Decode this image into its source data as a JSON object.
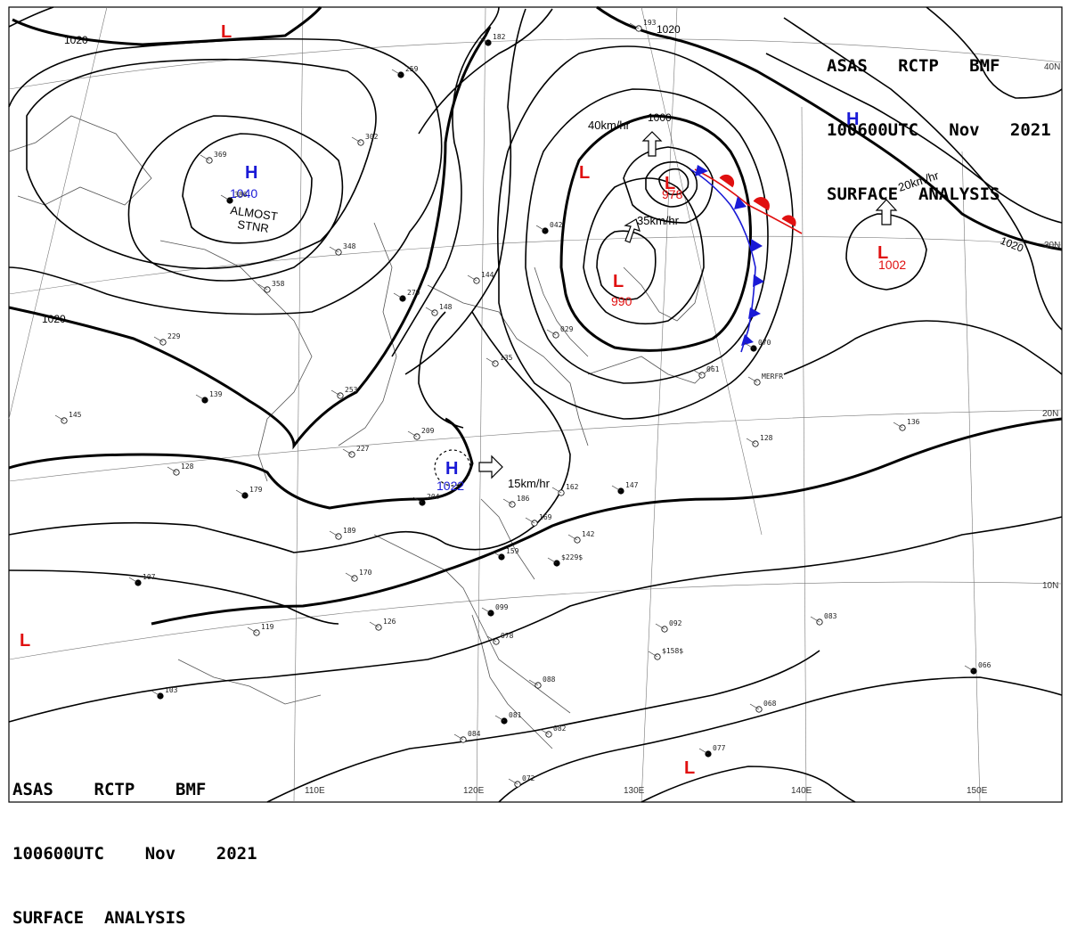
{
  "header_top": {
    "line1": "ASAS   RCTP   BMF",
    "line2": "100600UTC   Nov   2021",
    "line3": "SURFACE  ANALYSIS"
  },
  "header_bottom": {
    "line1": "ASAS    RCTP    BMF",
    "line2": "100600UTC    Nov    2021",
    "line3": "SURFACE  ANALYSIS"
  },
  "isobar_labels": [
    {
      "id": "1020-nw",
      "text": "1020"
    },
    {
      "id": "1020-ne",
      "text": "1020"
    },
    {
      "id": "1020-w",
      "text": "1020"
    },
    {
      "id": "1020-e",
      "text": "1020"
    },
    {
      "id": "1000",
      "text": "1000"
    }
  ],
  "pressure_systems": [
    {
      "id": "h-1040",
      "letter": "H",
      "value": "1040",
      "kind": "high",
      "color": "#1a1ad6"
    },
    {
      "id": "h-1022",
      "letter": "H",
      "value": "1022",
      "kind": "high",
      "color": "#1a1ad6"
    },
    {
      "id": "h-north",
      "letter": "H",
      "value": "",
      "kind": "high",
      "color": "#1a1ad6"
    },
    {
      "id": "l-990",
      "letter": "L",
      "value": "990",
      "kind": "low",
      "color": "#e01010"
    },
    {
      "id": "l-978",
      "letter": "L",
      "value": "978",
      "kind": "low",
      "color": "#e01010"
    },
    {
      "id": "l-1002",
      "letter": "L",
      "value": "1002",
      "kind": "low",
      "color": "#e01010"
    },
    {
      "id": "l-nw-top",
      "letter": "L",
      "value": "",
      "kind": "low",
      "color": "#e01010"
    },
    {
      "id": "l-mid",
      "letter": "L",
      "value": "",
      "kind": "low",
      "color": "#e01010"
    },
    {
      "id": "l-sw",
      "letter": "L",
      "value": "",
      "kind": "low",
      "color": "#e01010"
    },
    {
      "id": "l-south",
      "letter": "L",
      "value": "",
      "kind": "low",
      "color": "#e01010"
    }
  ],
  "motion_labels": [
    {
      "id": "m-40",
      "text": "40km/hr"
    },
    {
      "id": "m-35",
      "text": "35km/hr"
    },
    {
      "id": "m-20",
      "text": "20km/hr"
    },
    {
      "id": "m-15",
      "text": "15km/hr"
    }
  ],
  "annotations": {
    "almost": "ALMOST",
    "stnr": "STNR"
  },
  "lat_labels": [
    "40N",
    "30N",
    "20N",
    "10N"
  ],
  "lon_labels": [
    "110E",
    "120E",
    "130E",
    "140E",
    "150E"
  ],
  "station_marks": [
    "259",
    "302",
    "369",
    "386",
    "348",
    "358",
    "279",
    "229",
    "253",
    "139",
    "145",
    "128",
    "179",
    "227",
    "209",
    "204",
    "186",
    "169",
    "147",
    "162",
    "142",
    "159",
    "170",
    "189",
    "107",
    "126",
    "119",
    "103",
    "092",
    "083",
    "066",
    "068",
    "084",
    "081",
    "082",
    "072",
    "077",
    "136",
    "128",
    "070",
    "061",
    "029",
    "042",
    "148",
    "144",
    "099",
    "078",
    "088",
    "182",
    "193",
    "135",
    "$229$",
    "$158$",
    "MERFR"
  ],
  "colors": {
    "high": "#1a1ad6",
    "low": "#e01010",
    "cold_front": "#1a1ad6",
    "warm_front": "#e01010"
  }
}
